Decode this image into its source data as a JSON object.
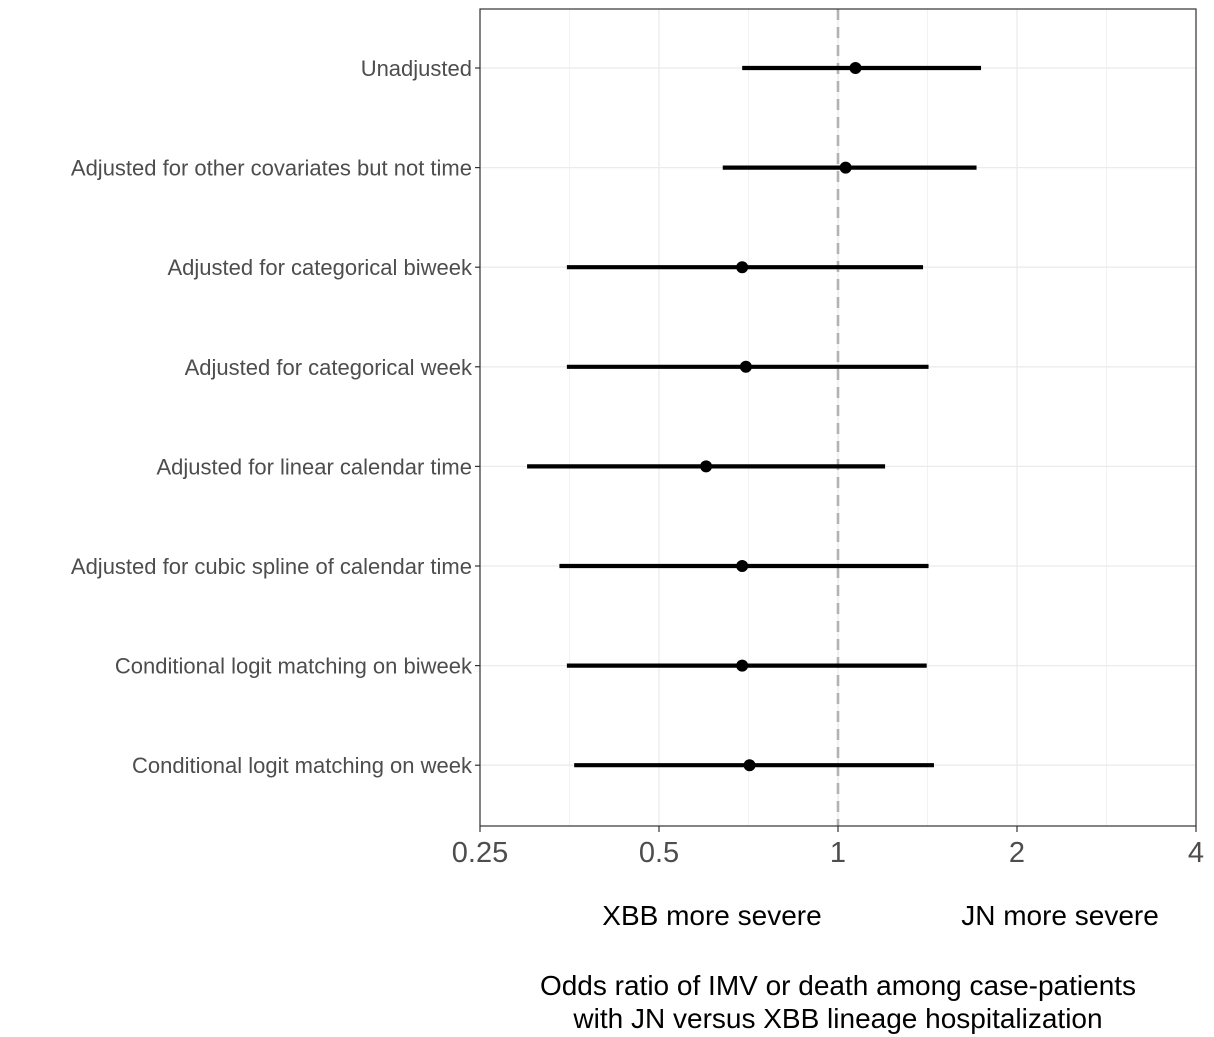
{
  "chart_data": {
    "type": "forest",
    "x_scale": "log2",
    "xlim": [
      0.25,
      4
    ],
    "x_ticks": [
      0.25,
      0.5,
      1,
      2,
      4
    ],
    "x_tick_labels": [
      "0.25",
      "0.5",
      "1",
      "2",
      "4"
    ],
    "reference_line": 1,
    "grid": true,
    "direction_labels": {
      "left": "XBB more severe",
      "right": "JN more severe"
    },
    "xlabel_lines": [
      "Odds ratio of IMV or death among case-patients",
      "with JN versus XBB lineage hospitalization"
    ],
    "rows": [
      {
        "label": "Unadjusted",
        "estimate": 1.07,
        "lower": 0.69,
        "upper": 1.74
      },
      {
        "label": "Adjusted for other covariates but not time",
        "estimate": 1.03,
        "lower": 0.64,
        "upper": 1.71
      },
      {
        "label": "Adjusted for categorical biweek",
        "estimate": 0.69,
        "lower": 0.35,
        "upper": 1.39
      },
      {
        "label": "Adjusted for categorical week",
        "estimate": 0.7,
        "lower": 0.35,
        "upper": 1.42
      },
      {
        "label": "Adjusted for linear calendar time",
        "estimate": 0.6,
        "lower": 0.3,
        "upper": 1.2
      },
      {
        "label": "Adjusted for cubic spline of calendar time",
        "estimate": 0.69,
        "lower": 0.34,
        "upper": 1.42
      },
      {
        "label": "Conditional logit matching on biweek",
        "estimate": 0.69,
        "lower": 0.35,
        "upper": 1.41
      },
      {
        "label": "Conditional logit matching on week",
        "estimate": 0.71,
        "lower": 0.36,
        "upper": 1.45
      }
    ]
  }
}
